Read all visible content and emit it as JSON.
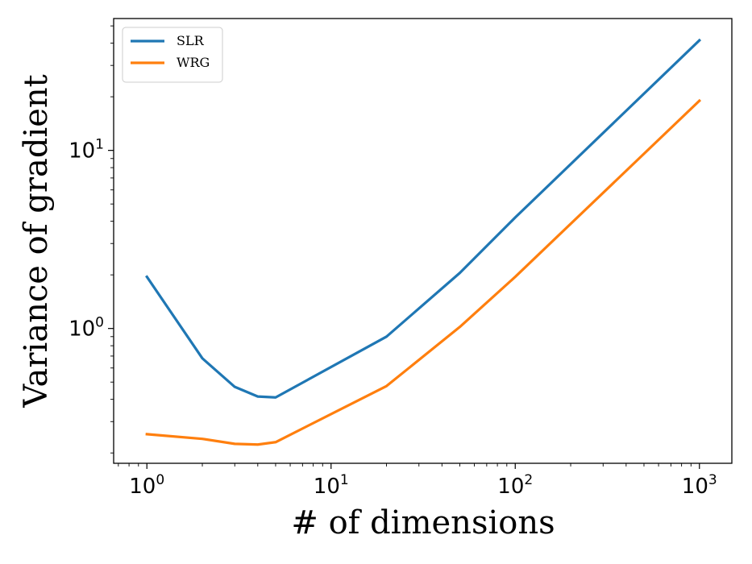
{
  "chart_data": {
    "type": "line",
    "xscale": "log",
    "yscale": "log",
    "xlabel": "# of dimensions",
    "ylabel": "Variance of gradient",
    "xlim": [
      0.66,
      1500
    ],
    "ylim": [
      0.175,
      55
    ],
    "xticks": [
      {
        "base": "10",
        "exp": "0",
        "value": 1
      },
      {
        "base": "10",
        "exp": "1",
        "value": 10
      },
      {
        "base": "10",
        "exp": "2",
        "value": 100
      },
      {
        "base": "10",
        "exp": "3",
        "value": 1000
      }
    ],
    "yticks": [
      {
        "base": "10",
        "exp": "0",
        "value": 1
      },
      {
        "base": "10",
        "exp": "1",
        "value": 10
      }
    ],
    "legend_position": "top-left",
    "series": [
      {
        "name": "SLR",
        "color": "#1f77b4",
        "x": [
          1,
          2,
          3,
          4,
          5,
          20,
          50,
          100,
          1000
        ],
        "y": [
          1.95,
          0.68,
          0.47,
          0.415,
          0.41,
          0.9,
          2.05,
          4.2,
          41.5
        ]
      },
      {
        "name": "WRG",
        "color": "#ff7f0e",
        "x": [
          1,
          2,
          3,
          4,
          5,
          20,
          50,
          100,
          1000
        ],
        "y": [
          0.255,
          0.24,
          0.225,
          0.223,
          0.23,
          0.475,
          1.02,
          1.95,
          19
        ]
      }
    ]
  }
}
